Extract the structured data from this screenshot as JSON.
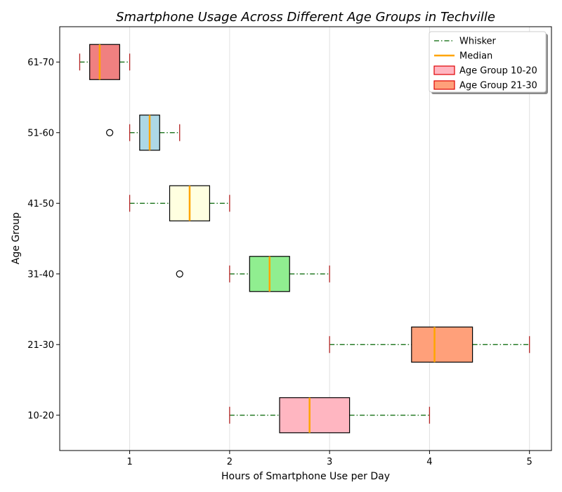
{
  "chart_data": {
    "type": "boxplot",
    "orientation": "horizontal",
    "title": "Smartphone Usage Across Different Age Groups in Techville",
    "xlabel": "Hours of Smartphone Use per Day",
    "ylabel": "Age Group",
    "xlim": [
      0.3,
      5.22
    ],
    "xticks": [
      1,
      2,
      3,
      4,
      5
    ],
    "grid": "vertical",
    "legend": {
      "placement": "top-right",
      "entries": [
        {
          "label": "Whisker",
          "kind": "line",
          "color": "#006400",
          "dash": "dashdot"
        },
        {
          "label": "Median",
          "kind": "line",
          "color": "#FFA500"
        },
        {
          "label": "Age Group 10-20",
          "kind": "patch",
          "color": "#FFB6C1",
          "edge": "#E00000"
        },
        {
          "label": "Age Group 21-30",
          "kind": "patch",
          "color": "#FFA07A",
          "edge": "#E00000"
        }
      ]
    },
    "groups": [
      {
        "category": "10-20",
        "whisker_low": 2.0,
        "q1": 2.5,
        "median": 2.8,
        "q3": 3.2,
        "whisker_high": 4.0,
        "outliers": [],
        "color": "#FFB6C1"
      },
      {
        "category": "21-30",
        "whisker_low": 3.0,
        "q1": 3.82,
        "median": 4.05,
        "q3": 4.43,
        "whisker_high": 5.0,
        "outliers": [],
        "color": "#FFA07A"
      },
      {
        "category": "31-40",
        "whisker_low": 2.0,
        "q1": 2.2,
        "median": 2.4,
        "q3": 2.6,
        "whisker_high": 3.0,
        "outliers": [
          1.5
        ],
        "color": "#90EE90"
      },
      {
        "category": "41-50",
        "whisker_low": 1.0,
        "q1": 1.4,
        "median": 1.6,
        "q3": 1.8,
        "whisker_high": 2.0,
        "outliers": [],
        "color": "#FFFFE0"
      },
      {
        "category": "51-60",
        "whisker_low": 1.0,
        "q1": 1.1,
        "median": 1.2,
        "q3": 1.3,
        "whisker_high": 1.5,
        "outliers": [
          0.8
        ],
        "color": "#ADD8E6"
      },
      {
        "category": "61-70",
        "whisker_low": 0.5,
        "q1": 0.6,
        "median": 0.7,
        "q3": 0.9,
        "whisker_high": 1.0,
        "outliers": [],
        "color": "#F08080"
      }
    ],
    "styles": {
      "whisker_color": "#006400",
      "cap_color": "#B22222",
      "median_color": "#FFA500",
      "box_edge": "#000000",
      "grid_color": "#E0E0E0"
    }
  }
}
